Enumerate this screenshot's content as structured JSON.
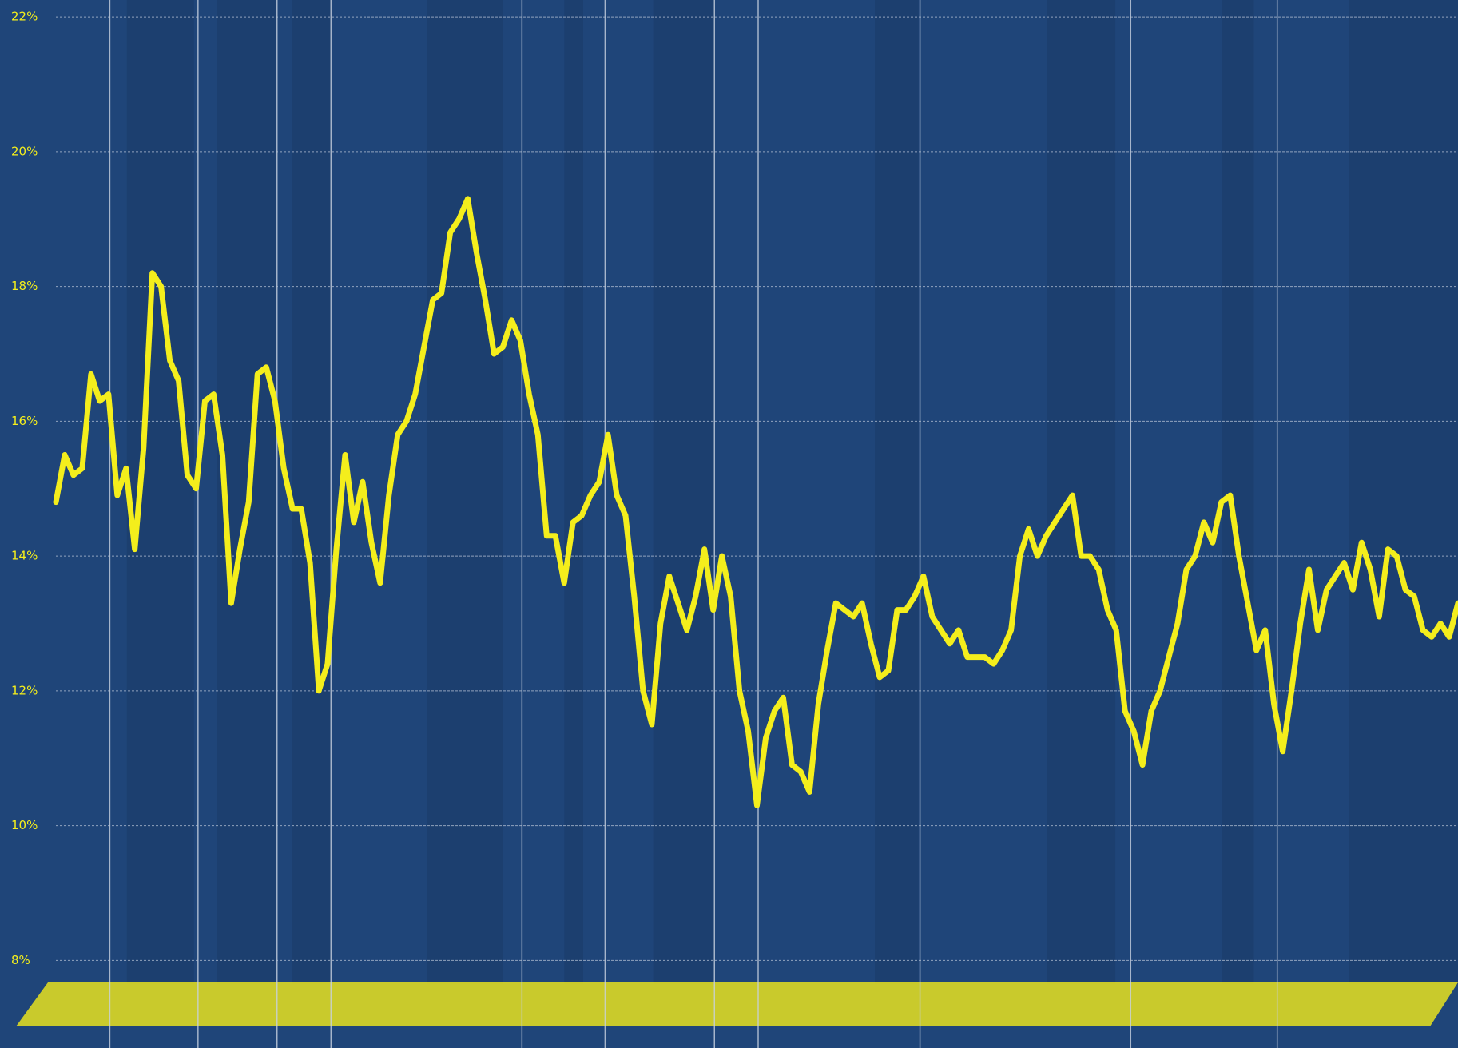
{
  "chart_data": {
    "type": "line",
    "color": "#f4ee1c",
    "grid": true,
    "ylim": [
      6.7,
      22.25
    ],
    "yticks": [
      {
        "value": 8,
        "label": "8%"
      },
      {
        "value": 10,
        "label": "10%"
      },
      {
        "value": 12,
        "label": "12%"
      },
      {
        "value": 14,
        "label": "14%"
      },
      {
        "value": 16,
        "label": "16%"
      },
      {
        "value": 18,
        "label": "18%"
      },
      {
        "value": 20,
        "label": "20%"
      },
      {
        "value": 22,
        "label": "22%"
      }
    ],
    "values": [
      14.8,
      15.5,
      15.2,
      15.3,
      16.7,
      16.3,
      16.4,
      14.9,
      15.3,
      14.1,
      15.6,
      18.2,
      18.0,
      16.9,
      16.6,
      15.2,
      15.0,
      16.3,
      16.4,
      15.5,
      13.3,
      14.1,
      14.8,
      16.7,
      16.8,
      16.3,
      15.3,
      14.7,
      14.7,
      13.9,
      12.0,
      12.4,
      14.1,
      15.5,
      14.5,
      15.1,
      14.2,
      13.6,
      14.9,
      15.8,
      16.0,
      16.4,
      17.1,
      17.8,
      17.9,
      18.8,
      19.0,
      19.3,
      18.5,
      17.8,
      17.0,
      17.1,
      17.5,
      17.2,
      16.4,
      15.8,
      14.3,
      14.3,
      13.6,
      14.5,
      14.6,
      14.9,
      15.1,
      15.8,
      14.9,
      14.6,
      13.4,
      12.0,
      11.5,
      13.0,
      13.7,
      13.3,
      12.9,
      13.4,
      14.1,
      13.2,
      14.0,
      13.4,
      12.0,
      11.4,
      10.3,
      11.3,
      11.7,
      11.9,
      10.9,
      10.8,
      10.5,
      11.8,
      12.6,
      13.3,
      13.2,
      13.1,
      13.3,
      12.7,
      12.2,
      12.3,
      13.2,
      13.2,
      13.4,
      13.7,
      13.1,
      12.9,
      12.7,
      12.9,
      12.5,
      12.5,
      12.5,
      12.4,
      12.6,
      12.9,
      14.0,
      14.4,
      14.0,
      14.3,
      14.5,
      14.7,
      14.9,
      14.0,
      14.0,
      13.8,
      13.2,
      12.9,
      11.7,
      11.4,
      10.9,
      11.7,
      12.0,
      12.5,
      13.0,
      13.8,
      14.0,
      14.5,
      14.2,
      14.8,
      14.9,
      14.0,
      13.3,
      12.6,
      12.9,
      11.8,
      11.1,
      12.0,
      13.0,
      13.8,
      12.9,
      13.5,
      13.7,
      13.9,
      13.5,
      14.2,
      13.8,
      13.1,
      14.1,
      14.0,
      13.5,
      13.4,
      12.9,
      12.8,
      13.0,
      12.8,
      13.3
    ]
  }
}
